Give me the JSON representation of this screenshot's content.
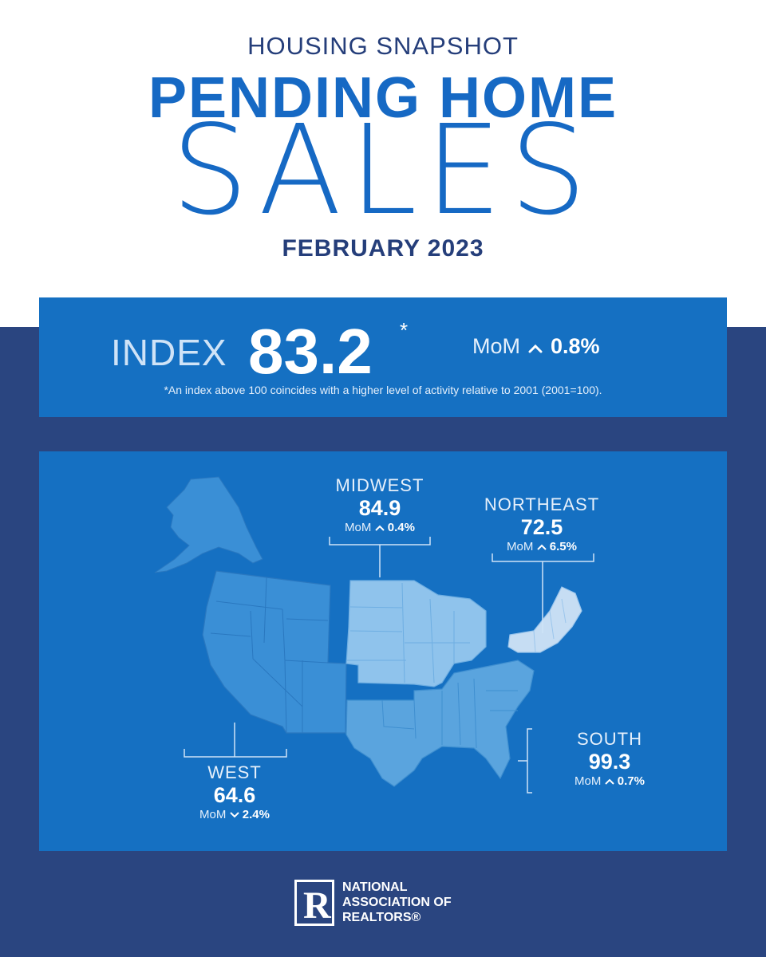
{
  "header": {
    "eyebrow": "HOUSING SNAPSHOT",
    "title_line1": "PENDING HOME",
    "title_line2": "SALES",
    "subtitle": "FEBRUARY 2023"
  },
  "index": {
    "label": "INDEX",
    "value": "83.2",
    "asterisk": "*",
    "mom_label": "MoM",
    "mom_direction": "up",
    "mom_value": "0.8%",
    "note": "*An index above 100 coincides with a higher level of activity relative to 2001 (2001=100)."
  },
  "regions": [
    {
      "name": "MIDWEST",
      "value": "84.9",
      "mom_label": "MoM",
      "direction": "up",
      "mom_value": "0.4%"
    },
    {
      "name": "NORTHEAST",
      "value": "72.5",
      "mom_label": "MoM",
      "direction": "up",
      "mom_value": "6.5%"
    },
    {
      "name": "SOUTH",
      "value": "99.3",
      "mom_label": "MoM",
      "direction": "up",
      "mom_value": "0.7%"
    },
    {
      "name": "WEST",
      "value": "64.6",
      "mom_label": "MoM",
      "direction": "down",
      "mom_value": "2.4%"
    }
  ],
  "logo": {
    "mark": "R",
    "line1": "NATIONAL",
    "line2": "ASSOCIATION OF",
    "line3": "REALTORS®"
  },
  "colors": {
    "brand_blue": "#1669c4",
    "navy": "#253e7a",
    "background_navy": "#2a4580",
    "card_blue": "#1570c2",
    "west": "#3a8fd6",
    "midwest": "#8fc3ec",
    "northeast": "#c6ddf3",
    "south": "#5aa4de"
  }
}
